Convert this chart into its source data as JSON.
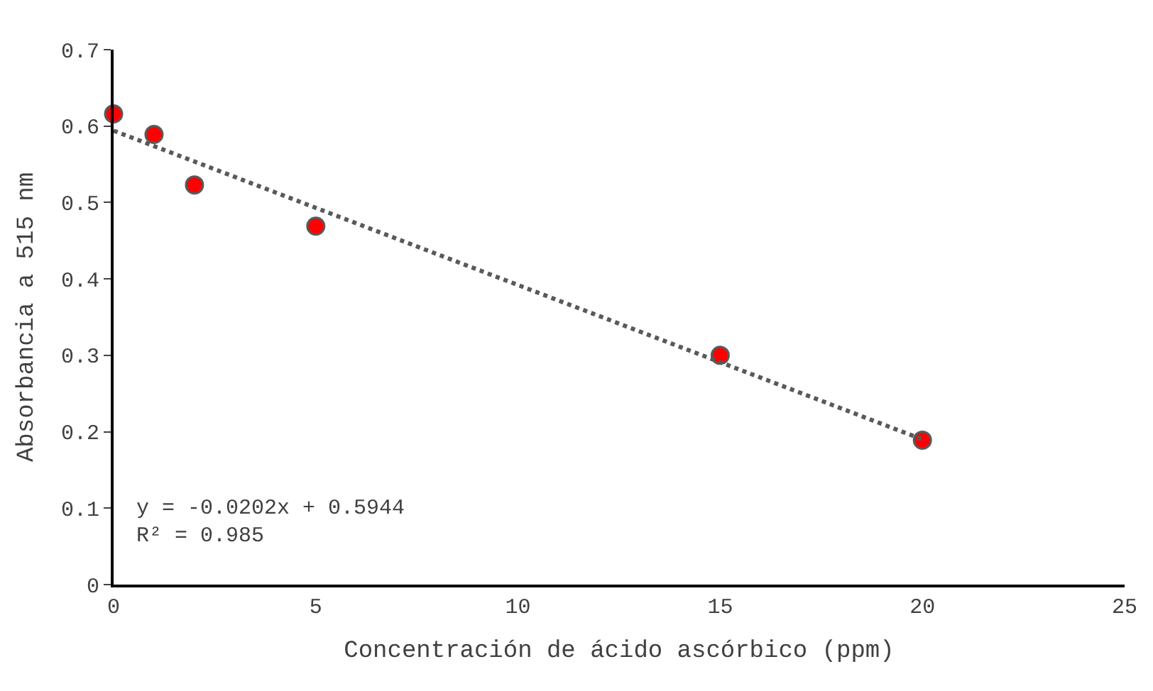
{
  "chart_data": {
    "type": "scatter",
    "xlabel": "Concentración de ácido ascórbico (ppm)",
    "ylabel": "Absorbancia a 515 nm",
    "series": [
      {
        "color": "#ff0000",
        "x": [
          0,
          1,
          2,
          5,
          15,
          20
        ],
        "values": [
          0.616,
          0.589,
          0.523,
          0.469,
          0.3,
          0.189
        ],
        "marker": "circle"
      },
      {
        "type": "line",
        "color": "#595959",
        "x": [
          0,
          20
        ],
        "values": [
          0.594,
          0.19
        ],
        "line_style": "dotted",
        "marker": "none"
      }
    ],
    "annotations": [
      "y = -0.0202x + 0.5944\nR² = 0.985"
    ],
    "xlim": [
      0,
      25
    ],
    "xticks": [
      0,
      5,
      10,
      15,
      20,
      25
    ],
    "ylim": [
      0,
      0.7
    ],
    "yticks": [
      0,
      0.1,
      0.2,
      0.3,
      0.4,
      0.5,
      0.6,
      0.7
    ]
  }
}
